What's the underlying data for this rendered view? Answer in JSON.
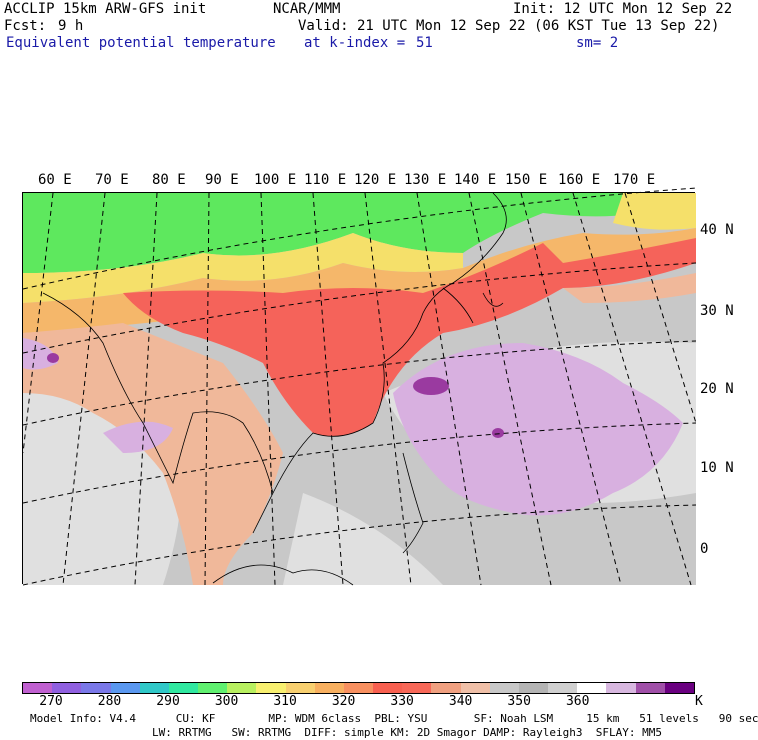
{
  "header": {
    "model": "ACCLIP 15km ARW-GFS init",
    "center": "NCAR/MMM",
    "init": "Init: 12 UTC Mon 12 Sep 22",
    "fcst_label": "Fcst:",
    "fcst_value": "9 h",
    "valid": "Valid: 21 UTC Mon 12 Sep 22 (06 KST Tue 13 Sep 22)",
    "field": "Equivalent potential temperature",
    "level": "at k-index =",
    "level_value": "51",
    "smooth": "sm= 2"
  },
  "map": {
    "lon_labels": [
      "60 E",
      "70 E",
      "80 E",
      "90 E",
      "100 E",
      "110 E",
      "120 E",
      "130 E",
      "140 E",
      "150 E",
      "160 E",
      "170 E"
    ],
    "lat_labels": [
      "40 N",
      "30 N",
      "20 N",
      "10 N",
      "0"
    ],
    "colors": {
      "green_band": "#5ee85e",
      "yellow": "#f5e06a",
      "orange": "#f5b76a",
      "red": "#f5635a",
      "tan": "#f0b89a",
      "grey": "#c8c8c8",
      "light_grey": "#e0e0e0",
      "lilac": "#d8b0e0",
      "purple": "#9a3aa0"
    }
  },
  "colorbar": {
    "unit": "K",
    "colors": [
      "#c060d0",
      "#9060e0",
      "#7a78e8",
      "#5a98f0",
      "#30c8c8",
      "#30e8a0",
      "#60f070",
      "#b8f060",
      "#f8f070",
      "#f8d070",
      "#f8b060",
      "#f89060",
      "#f86050",
      "#f86858",
      "#f0a080",
      "#f0c0a8",
      "#c8c8c8",
      "#b4b4b4",
      "#d0d0d0",
      "#ffffff",
      "#d8b8e0",
      "#a050a8",
      "#6a0080"
    ],
    "ticks": [
      "270",
      "280",
      "290",
      "300",
      "310",
      "320",
      "330",
      "340",
      "350",
      "360"
    ]
  },
  "model_info": {
    "line1": "Model Info: V4.4      CU: KF        MP: WDM 6class  PBL: YSU       SF: Noah LSM     15 km   51 levels   90 sec",
    "line2": "LW: RRTMG   SW: RRTMG  DIFF: simple KM: 2D Smagor DAMP: Rayleigh3  SFLAY: MM5"
  }
}
